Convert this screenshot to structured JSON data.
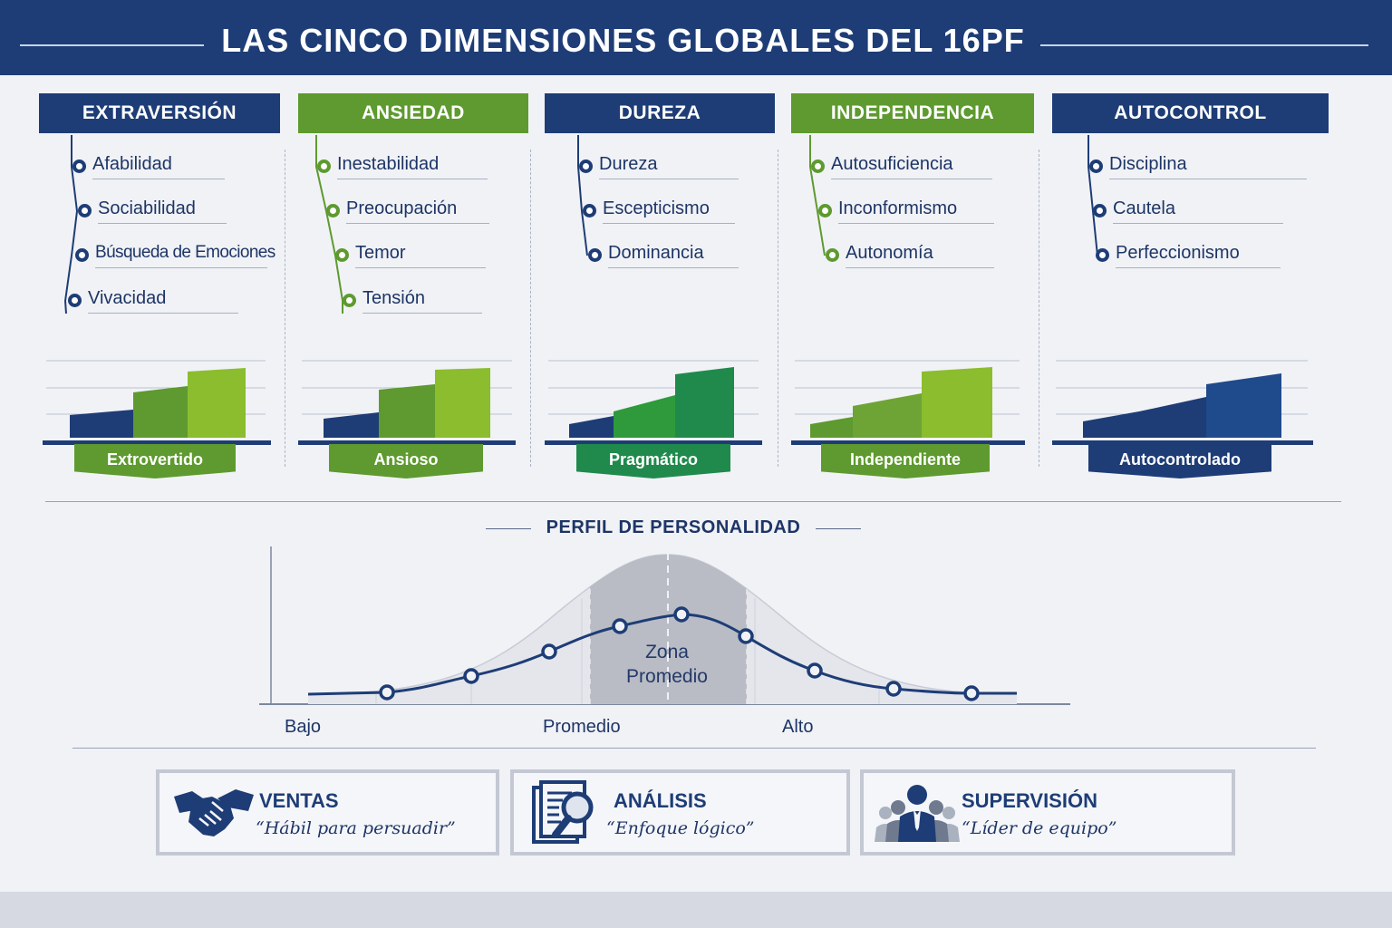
{
  "header": {
    "title": "LAS CINCO DIMENSIONES GLOBALES DEL 16PF"
  },
  "dimensions": [
    {
      "title": "EXTRAVERSIÓN",
      "color": "#1e3d76",
      "items": [
        "Afabilidad",
        "Sociabilidad",
        "Búsqueda de Emociones",
        "Vivacidad"
      ],
      "tag": "Extrovertido",
      "tag_color": "#5e9a2f"
    },
    {
      "title": "ANSIEDAD",
      "color": "#5e9a2f",
      "items": [
        "Inestabilidad",
        "Preocupación",
        "Temor",
        "Tensión"
      ],
      "tag": "Ansioso",
      "tag_color": "#5e9a2f"
    },
    {
      "title": "DUREZA",
      "color": "#1e3d76",
      "items": [
        "Dureza",
        "Escepticismo",
        "Dominancia"
      ],
      "tag": "Pragmático",
      "tag_color": "#1f8a4c"
    },
    {
      "title": "INDEPENDENCIA",
      "color": "#5e9a2f",
      "items": [
        "Autosuficiencia",
        "Inconformismo",
        "Autonomía"
      ],
      "tag": "Independiente",
      "tag_color": "#5e9a2f"
    },
    {
      "title": "AUTOCONTROL",
      "color": "#1e3d76",
      "items": [
        "Disciplina",
        "Cautela",
        "Perfeccionismo"
      ],
      "tag": "Autocontrolado",
      "tag_color": "#1e3d76"
    }
  ],
  "profile": {
    "title": "PERFIL DE PERSONALIDAD",
    "zone_line1": "Zona",
    "zone_line2": "Promedio",
    "x_labels": [
      "Bajo",
      "Promedio",
      "Alto"
    ]
  },
  "cards": [
    {
      "title": "VENTAS",
      "subtitle": "“Hábil para persuadir”",
      "icon": "handshake-icon"
    },
    {
      "title": "ANÁLISIS",
      "subtitle": "“Enfoque lógico”",
      "icon": "document-magnifier-icon"
    },
    {
      "title": "SUPERVISIÓN",
      "subtitle": "“Líder de equipo”",
      "icon": "team-leader-icon"
    }
  ]
}
